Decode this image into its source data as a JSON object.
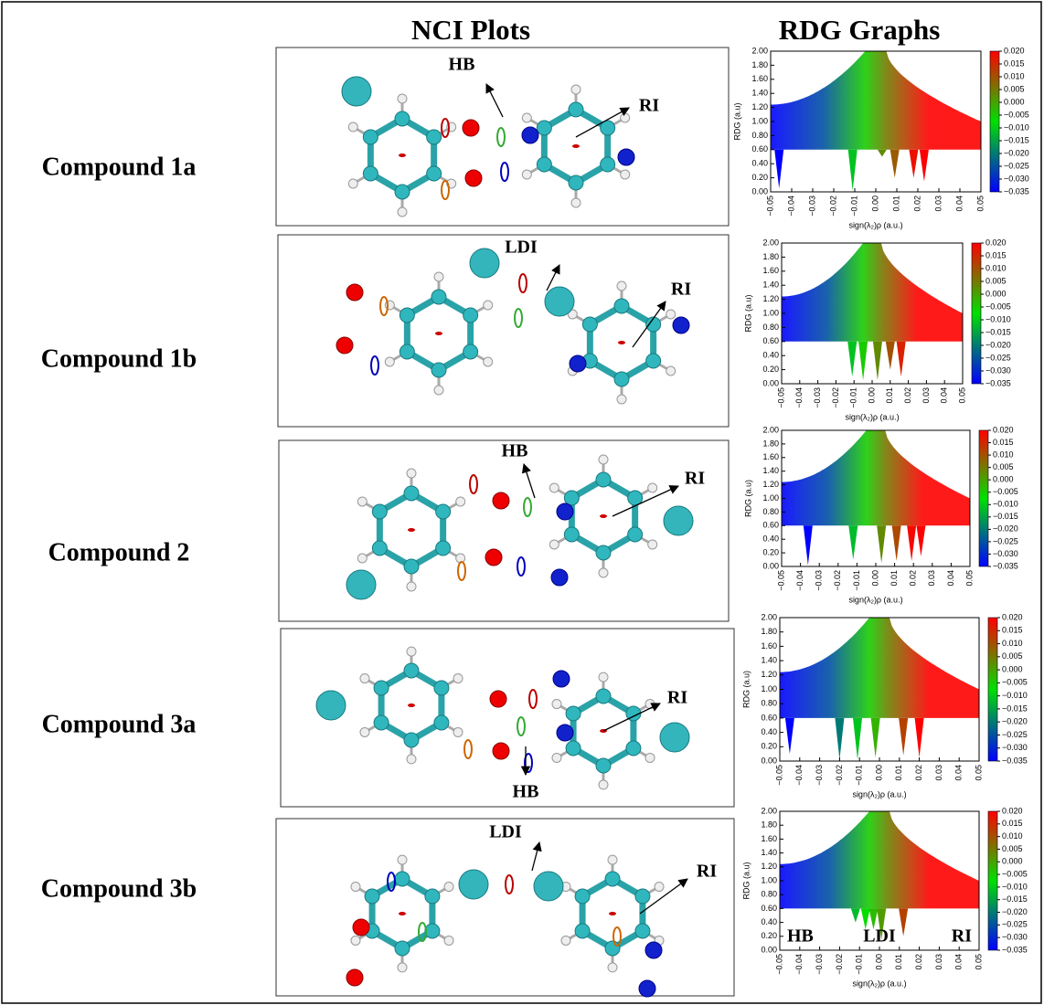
{
  "headers": {
    "nci": "NCI Plots",
    "rdg": "RDG Graphs"
  },
  "rows": [
    {
      "label": "Compound 1a",
      "annotations": [
        "HB",
        "RI"
      ]
    },
    {
      "label": "Compound 1b",
      "annotations": [
        "LDI",
        "RI"
      ]
    },
    {
      "label": "Compound 2",
      "annotations": [
        "HB",
        "RI"
      ]
    },
    {
      "label": "Compound 3a",
      "annotations": [
        "RI",
        "HB"
      ]
    },
    {
      "label": "Compound 3b",
      "annotations": [
        "LDI",
        "RI"
      ]
    }
  ],
  "chart_data": [
    {
      "type": "scatter",
      "xlabel": "sign(λ₂)ρ (a.u.)",
      "ylabel": "RDG (a.u)",
      "x": [
        -0.046,
        -0.011,
        0.003,
        0.009,
        0.018,
        0.023
      ],
      "values": [
        0.05,
        0.02,
        0.5,
        0.2,
        0.2,
        0.15
      ],
      "xlim": [
        -0.05,
        0.05
      ],
      "ylim": [
        0,
        2
      ],
      "xticks": [
        {
          "value": -0.05,
          "label": "−0.05"
        },
        {
          "value": -0.04,
          "label": "−0.04"
        },
        {
          "value": -0.03,
          "label": "−0.03"
        },
        {
          "value": -0.02,
          "label": "−0.02"
        },
        {
          "value": -0.01,
          "label": "−0.01"
        },
        {
          "value": 0,
          "label": "0.00"
        },
        0.01,
        0.02,
        0.03,
        0.04,
        0.05
      ],
      "yticks": [
        {
          "value": 0,
          "label": "0.00"
        },
        {
          "value": 0.2,
          "label": "0.20"
        },
        {
          "value": 0.4,
          "label": "0.40"
        },
        {
          "value": 0.6,
          "label": "0.60"
        },
        {
          "value": 0.8,
          "label": "0.80"
        },
        {
          "value": 1,
          "label": "1.00"
        },
        {
          "value": 1.2,
          "label": "1.20"
        },
        {
          "value": 1.4,
          "label": "1.40"
        },
        {
          "value": 1.6,
          "label": "1.60"
        },
        {
          "value": 1.8,
          "label": "1.80"
        },
        {
          "value": 2,
          "label": "2.00"
        }
      ],
      "colorbar": {
        "lim": [
          -0.035,
          0.02
        ],
        "colors": [
          "#0000ff",
          "#00e000",
          "#ff0000"
        ],
        "ticks": [
          {
            "value": 0.02,
            "label": "0.020"
          },
          0.015,
          {
            "value": 0.01,
            "label": "0.010"
          },
          0.005,
          {
            "value": 0,
            "label": "0.000"
          },
          {
            "value": -0.005,
            "label": "−0.005"
          },
          {
            "value": -0.01,
            "label": "−0.010"
          },
          {
            "value": -0.015,
            "label": "−0.015"
          },
          {
            "value": -0.02,
            "label": "−0.020"
          },
          {
            "value": -0.025,
            "label": "−0.025"
          },
          {
            "value": -0.03,
            "label": "−0.030"
          },
          {
            "value": -0.035,
            "label": "−0.035"
          }
        ]
      }
    },
    {
      "type": "scatter",
      "xlabel": "sign(λ₂)ρ (a.u.)",
      "ylabel": "RDG (a.u)",
      "x": [
        -0.011,
        -0.005,
        0.003,
        0.01,
        0.016
      ],
      "values": [
        0.1,
        0.05,
        0.05,
        0.2,
        0.1
      ],
      "xlim": [
        -0.05,
        0.05
      ],
      "ylim": [
        0,
        2
      ],
      "xticks": [
        {
          "value": -0.05,
          "label": "−0.05"
        },
        {
          "value": -0.04,
          "label": "−0.04"
        },
        {
          "value": -0.03,
          "label": "−0.03"
        },
        {
          "value": -0.02,
          "label": "−0.02"
        },
        {
          "value": -0.01,
          "label": "−0.01"
        },
        {
          "value": 0,
          "label": "0.00"
        },
        0.01,
        0.02,
        0.03,
        0.04,
        0.05
      ],
      "yticks": [
        {
          "value": 0,
          "label": "0.00"
        },
        {
          "value": 0.2,
          "label": "0.20"
        },
        {
          "value": 0.4,
          "label": "0.40"
        },
        {
          "value": 0.6,
          "label": "0.60"
        },
        {
          "value": 0.8,
          "label": "0.80"
        },
        {
          "value": 1,
          "label": "1.00"
        },
        {
          "value": 1.2,
          "label": "1.20"
        },
        {
          "value": 1.4,
          "label": "1.40"
        },
        {
          "value": 1.6,
          "label": "1.60"
        },
        {
          "value": 1.8,
          "label": "1.80"
        },
        {
          "value": 2,
          "label": "2.00"
        }
      ],
      "colorbar": {
        "lim": [
          -0.035,
          0.02
        ],
        "colors": [
          "#0000ff",
          "#00e000",
          "#ff0000"
        ],
        "ticks": [
          {
            "value": 0.02,
            "label": "0.020"
          },
          0.015,
          {
            "value": 0.01,
            "label": "0.010"
          },
          0.005,
          {
            "value": 0,
            "label": "0.000"
          },
          {
            "value": -0.005,
            "label": "−0.005"
          },
          {
            "value": -0.01,
            "label": "−0.010"
          },
          {
            "value": -0.015,
            "label": "−0.015"
          },
          {
            "value": -0.02,
            "label": "−0.020"
          },
          {
            "value": -0.025,
            "label": "−0.025"
          },
          {
            "value": -0.03,
            "label": "−0.030"
          },
          {
            "value": -0.035,
            "label": "−0.035"
          }
        ]
      }
    },
    {
      "type": "scatter",
      "xlabel": "sign(λ₂)ρ (a.u.)",
      "ylabel": "RDG (a.u)",
      "x": [
        -0.036,
        -0.012,
        0.003,
        0.011,
        0.019,
        0.024
      ],
      "values": [
        0.02,
        0.1,
        0.05,
        0.08,
        0.08,
        0.15
      ],
      "xlim": [
        -0.05,
        0.05
      ],
      "ylim": [
        0,
        2
      ],
      "xticks": [
        {
          "value": -0.05,
          "label": "−0.05"
        },
        {
          "value": -0.04,
          "label": "−0.04"
        },
        {
          "value": -0.03,
          "label": "−0.03"
        },
        {
          "value": -0.02,
          "label": "−0.02"
        },
        {
          "value": -0.01,
          "label": "−0.01"
        },
        {
          "value": 0,
          "label": "0.00"
        },
        0.01,
        0.02,
        0.03,
        0.04,
        0.05
      ],
      "yticks": [
        {
          "value": 0,
          "label": "0.00"
        },
        {
          "value": 0.2,
          "label": "0.20"
        },
        {
          "value": 0.4,
          "label": "0.40"
        },
        {
          "value": 0.6,
          "label": "0.60"
        },
        {
          "value": 0.8,
          "label": "0.80"
        },
        {
          "value": 1,
          "label": "1.00"
        },
        {
          "value": 1.2,
          "label": "1.20"
        },
        {
          "value": 1.4,
          "label": "1.40"
        },
        {
          "value": 1.6,
          "label": "1.60"
        },
        {
          "value": 1.8,
          "label": "1.80"
        },
        {
          "value": 2,
          "label": "2.00"
        }
      ],
      "colorbar": {
        "lim": [
          -0.035,
          0.02
        ],
        "colors": [
          "#0000ff",
          "#00e000",
          "#ff0000"
        ],
        "ticks": [
          {
            "value": 0.02,
            "label": "0.020"
          },
          0.015,
          {
            "value": 0.01,
            "label": "0.010"
          },
          0.005,
          {
            "value": 0,
            "label": "0.000"
          },
          {
            "value": -0.005,
            "label": "−0.005"
          },
          {
            "value": -0.01,
            "label": "−0.010"
          },
          {
            "value": -0.015,
            "label": "−0.015"
          },
          {
            "value": -0.02,
            "label": "−0.020"
          },
          {
            "value": -0.025,
            "label": "−0.025"
          },
          {
            "value": -0.03,
            "label": "−0.030"
          },
          {
            "value": -0.035,
            "label": "−0.035"
          }
        ]
      }
    },
    {
      "type": "scatter",
      "xlabel": "sign(λ₂)ρ (a.u.)",
      "ylabel": "RDG (a.u)",
      "x": [
        -0.045,
        -0.02,
        -0.011,
        -0.002,
        0.012,
        0.02
      ],
      "values": [
        0.1,
        0.02,
        0.02,
        0.05,
        0.08,
        0.05
      ],
      "xlim": [
        -0.05,
        0.05
      ],
      "ylim": [
        0,
        2
      ],
      "xticks": [
        {
          "value": -0.05,
          "label": "−0.05"
        },
        {
          "value": -0.04,
          "label": "−0.04"
        },
        {
          "value": -0.03,
          "label": "−0.03"
        },
        {
          "value": -0.02,
          "label": "−0.02"
        },
        {
          "value": -0.01,
          "label": "−0.01"
        },
        {
          "value": 0,
          "label": "0.00"
        },
        0.01,
        0.02,
        0.03,
        0.04,
        0.05
      ],
      "yticks": [
        {
          "value": 0,
          "label": "0.00"
        },
        {
          "value": 0.2,
          "label": "0.20"
        },
        {
          "value": 0.4,
          "label": "0.40"
        },
        {
          "value": 0.6,
          "label": "0.60"
        },
        {
          "value": 0.8,
          "label": "0.80"
        },
        {
          "value": 1,
          "label": "1.00"
        },
        {
          "value": 1.2,
          "label": "1.20"
        },
        {
          "value": 1.4,
          "label": "1.40"
        },
        {
          "value": 1.6,
          "label": "1.60"
        },
        {
          "value": 1.8,
          "label": "1.80"
        },
        {
          "value": 2,
          "label": "2.00"
        }
      ],
      "colorbar": {
        "lim": [
          -0.035,
          0.02
        ],
        "colors": [
          "#0000ff",
          "#00e000",
          "#ff0000"
        ],
        "ticks": [
          {
            "value": 0.02,
            "label": "0.020"
          },
          0.015,
          {
            "value": 0.01,
            "label": "0.010"
          },
          0.005,
          {
            "value": 0,
            "label": "0.000"
          },
          {
            "value": -0.005,
            "label": "−0.005"
          },
          {
            "value": -0.01,
            "label": "−0.010"
          },
          {
            "value": -0.015,
            "label": "−0.015"
          },
          {
            "value": -0.02,
            "label": "−0.020"
          },
          {
            "value": -0.025,
            "label": "−0.025"
          },
          {
            "value": -0.03,
            "label": "−0.030"
          },
          {
            "value": -0.035,
            "label": "−0.035"
          }
        ]
      }
    },
    {
      "type": "scatter",
      "xlabel": "sign(λ₂)ρ (a.u.)",
      "ylabel": "RDG (a.u)",
      "annotations": [
        "HB",
        "LDI",
        "RI"
      ],
      "x": [
        -0.012,
        -0.007,
        -0.003,
        0.001,
        0.012
      ],
      "values": [
        0.4,
        0.3,
        0.3,
        0.15,
        0.2
      ],
      "xlim": [
        -0.05,
        0.05
      ],
      "ylim": [
        0,
        2
      ],
      "xticks": [
        {
          "value": -0.05,
          "label": "−0.05"
        },
        {
          "value": -0.04,
          "label": "−0.04"
        },
        {
          "value": -0.03,
          "label": "−0.03"
        },
        {
          "value": -0.02,
          "label": "−0.02"
        },
        {
          "value": -0.01,
          "label": "−0.01"
        },
        {
          "value": 0,
          "label": "0.00"
        },
        0.01,
        0.02,
        0.03,
        0.04,
        0.05
      ],
      "yticks": [
        {
          "value": 0,
          "label": "0.00"
        },
        {
          "value": 0.2,
          "label": "0.20"
        },
        {
          "value": 0.4,
          "label": "0.40"
        },
        {
          "value": 0.6,
          "label": "0.60"
        },
        {
          "value": 0.8,
          "label": "0.80"
        },
        {
          "value": 1,
          "label": "1.00"
        },
        {
          "value": 1.2,
          "label": "1.20"
        },
        {
          "value": 1.4,
          "label": "1.40"
        },
        {
          "value": 1.6,
          "label": "1.60"
        },
        {
          "value": 1.8,
          "label": "1.80"
        },
        {
          "value": 2,
          "label": "2.00"
        }
      ],
      "colorbar": {
        "lim": [
          -0.035,
          0.02
        ],
        "colors": [
          "#0000ff",
          "#00e000",
          "#ff0000"
        ],
        "ticks": [
          {
            "value": 0.02,
            "label": "0.020"
          },
          0.015,
          {
            "value": 0.01,
            "label": "0.010"
          },
          0.005,
          {
            "value": 0,
            "label": "0.000"
          },
          {
            "value": -0.005,
            "label": "−0.005"
          },
          {
            "value": -0.01,
            "label": "−0.010"
          },
          {
            "value": -0.015,
            "label": "−0.015"
          },
          {
            "value": -0.02,
            "label": "−0.020"
          },
          {
            "value": -0.025,
            "label": "−0.025"
          },
          {
            "value": -0.03,
            "label": "−0.030"
          },
          {
            "value": -0.035,
            "label": "−0.035"
          }
        ]
      }
    }
  ]
}
